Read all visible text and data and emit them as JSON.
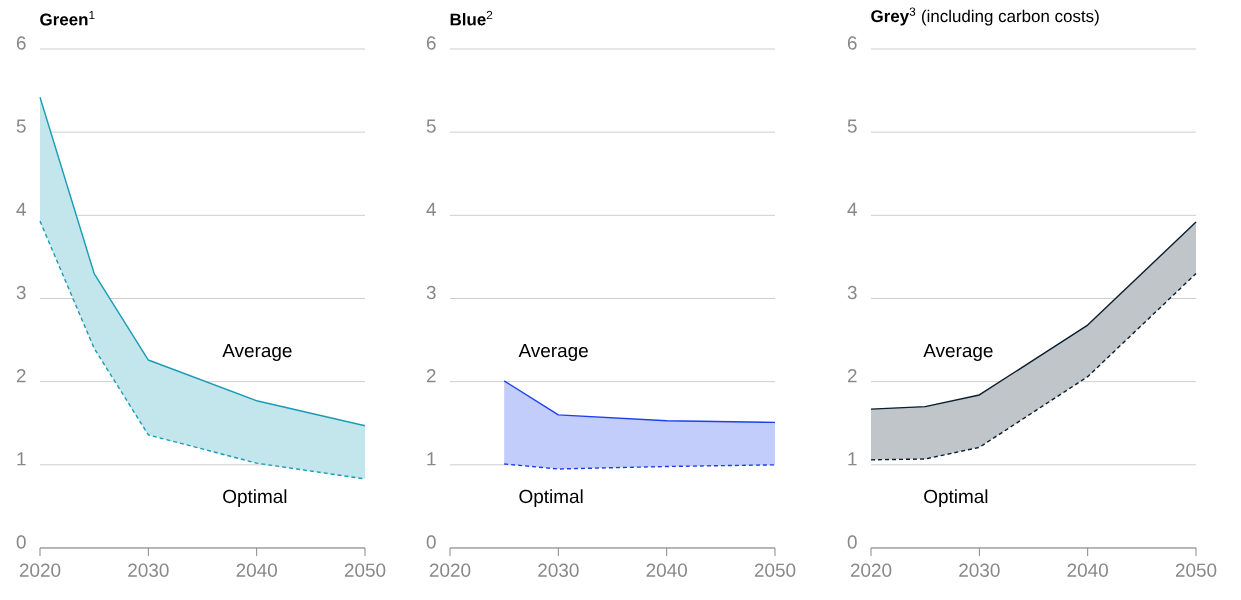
{
  "chart_data": [
    {
      "type": "line",
      "title": "**Green**$^{1}$",
      "xlim": [
        2020,
        2050
      ],
      "xticks": [
        2020,
        2030,
        2040,
        2050
      ],
      "ylim": [
        0,
        6
      ],
      "yticks": [
        0,
        1,
        2,
        3,
        4,
        5,
        6
      ],
      "grid": "y",
      "series": [
        {
          "name": "Average",
          "color": "#1a9bb5",
          "line_style": "solid",
          "x": [
            2020,
            2025,
            2030,
            2040,
            2050
          ],
          "values": [
            5.42,
            3.3,
            2.26,
            1.77,
            1.47
          ],
          "lower": [
            3.93,
            2.4,
            1.36,
            1.02,
            0.83
          ],
          "upper": [
            5.42,
            3.3,
            2.26,
            1.77,
            1.47
          ]
        },
        {
          "name": "Optimal",
          "color": "#1a9bb5",
          "line_style": "dashed",
          "x": [
            2020,
            2025,
            2030,
            2040,
            2050
          ],
          "values": [
            3.93,
            2.4,
            1.36,
            1.02,
            0.83
          ]
        }
      ]
    },
    {
      "type": "line",
      "title": "**Blue**$^{2}$",
      "xlim": [
        2020,
        2050
      ],
      "xticks": [
        2020,
        2030,
        2040,
        2050
      ],
      "ylim": [
        0,
        6
      ],
      "yticks": [
        0,
        1,
        2,
        3,
        4,
        5,
        6
      ],
      "grid": "y",
      "series": [
        {
          "name": "Average",
          "color": "#1a3ff0",
          "line_style": "solid",
          "x": [
            2025,
            2030,
            2040,
            2050
          ],
          "values": [
            2.01,
            1.6,
            1.53,
            1.51
          ],
          "lower": [
            1.01,
            0.95,
            0.98,
            1.0
          ],
          "upper": [
            2.01,
            1.6,
            1.53,
            1.51
          ]
        },
        {
          "name": "Optimal",
          "color": "#1a3ff0",
          "line_style": "dashed",
          "x": [
            2025,
            2030,
            2040,
            2050
          ],
          "values": [
            1.01,
            0.95,
            0.98,
            1.0
          ]
        }
      ]
    },
    {
      "type": "line",
      "title": "**Grey**$^{3}$ (including carbon costs)",
      "xlim": [
        2020,
        2050
      ],
      "xticks": [
        2020,
        2030,
        2040,
        2050
      ],
      "ylim": [
        0,
        6
      ],
      "yticks": [
        0,
        1,
        2,
        3,
        4,
        5,
        6
      ],
      "grid": "y",
      "series": [
        {
          "name": "Average",
          "color": "#0a1e2e",
          "line_style": "solid",
          "x": [
            2020,
            2025,
            2030,
            2040,
            2050
          ],
          "values": [
            1.67,
            1.7,
            1.84,
            2.68,
            3.92
          ],
          "lower": [
            1.06,
            1.07,
            1.21,
            2.06,
            3.3
          ],
          "upper": [
            1.67,
            1.7,
            1.84,
            2.68,
            3.92
          ]
        },
        {
          "name": "Optimal",
          "color": "#0a1e2e",
          "line_style": "dashed",
          "x": [
            2020,
            2025,
            2030,
            2040,
            2050
          ],
          "values": [
            1.06,
            1.07,
            1.21,
            2.06,
            3.3
          ]
        }
      ]
    }
  ]
}
